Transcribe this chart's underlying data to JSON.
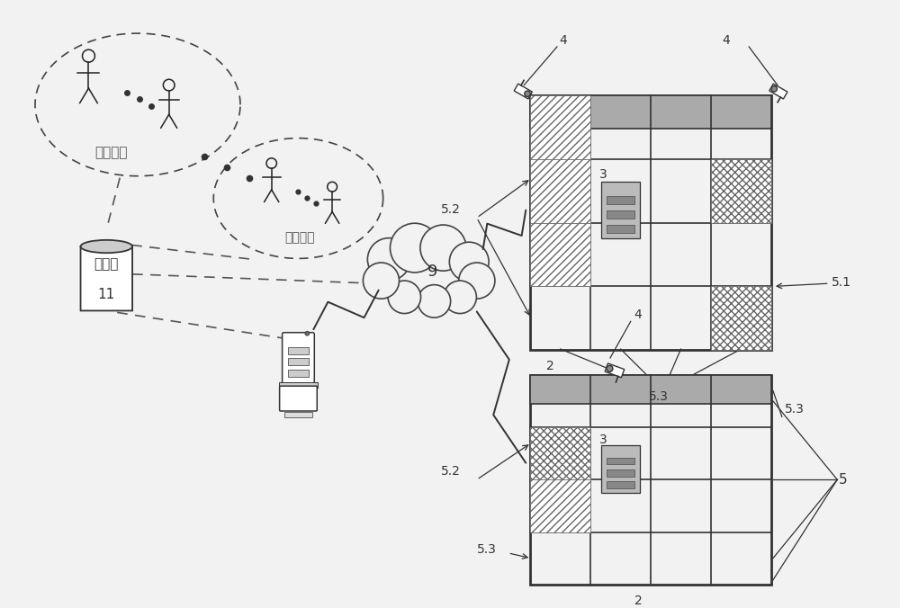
{
  "bg_color": "#f2f2f2",
  "label_deposit": "存货账户",
  "label_pickup": "取货账户",
  "label_db": "数据库",
  "label_db_num": "11",
  "label_cloud": "9",
  "label_2_top": "2",
  "label_2_bot": "2",
  "label_3_top": "3",
  "label_3_bot": "3",
  "label_4": "4",
  "label_51": "5.1",
  "label_52": "5.2",
  "label_53_top": "5.3",
  "label_53_bot": "5.3",
  "label_5": "5"
}
